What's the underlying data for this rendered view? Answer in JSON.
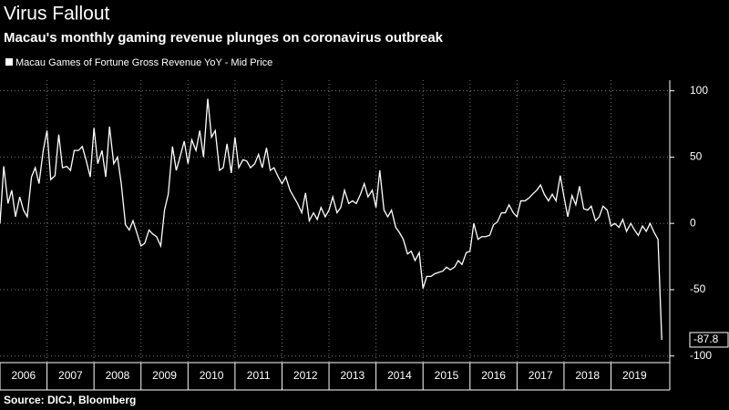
{
  "chart_data": {
    "type": "line",
    "title": "Virus Fallout",
    "subtitle": "Macau's monthly gaming revenue plunges on coronavirus outbreak",
    "source": "Source: DICJ, Bloomberg",
    "x": [
      2006,
      2006.08,
      2006.17,
      2006.25,
      2006.33,
      2006.42,
      2006.5,
      2006.58,
      2006.67,
      2006.75,
      2006.83,
      2006.92,
      2007,
      2007.08,
      2007.17,
      2007.25,
      2007.33,
      2007.42,
      2007.5,
      2007.58,
      2007.67,
      2007.75,
      2007.83,
      2007.92,
      2008,
      2008.08,
      2008.17,
      2008.25,
      2008.33,
      2008.42,
      2008.5,
      2008.58,
      2008.67,
      2008.75,
      2008.83,
      2008.92,
      2009,
      2009.08,
      2009.17,
      2009.25,
      2009.33,
      2009.42,
      2009.5,
      2009.58,
      2009.67,
      2009.75,
      2009.83,
      2009.92,
      2010,
      2010.08,
      2010.17,
      2010.25,
      2010.33,
      2010.42,
      2010.5,
      2010.58,
      2010.67,
      2010.75,
      2010.83,
      2010.92,
      2011,
      2011.08,
      2011.17,
      2011.25,
      2011.33,
      2011.42,
      2011.5,
      2011.58,
      2011.67,
      2011.75,
      2011.83,
      2011.92,
      2012,
      2012.08,
      2012.17,
      2012.25,
      2012.33,
      2012.42,
      2012.5,
      2012.58,
      2012.67,
      2012.75,
      2012.83,
      2012.92,
      2013,
      2013.08,
      2013.17,
      2013.25,
      2013.33,
      2013.42,
      2013.5,
      2013.58,
      2013.67,
      2013.75,
      2013.83,
      2013.92,
      2014,
      2014.08,
      2014.17,
      2014.25,
      2014.33,
      2014.42,
      2014.5,
      2014.58,
      2014.67,
      2014.75,
      2014.83,
      2014.92,
      2015,
      2015.08,
      2015.17,
      2015.25,
      2015.33,
      2015.42,
      2015.5,
      2015.58,
      2015.67,
      2015.75,
      2015.83,
      2015.92,
      2016,
      2016.08,
      2016.17,
      2016.25,
      2016.33,
      2016.42,
      2016.5,
      2016.58,
      2016.67,
      2016.75,
      2016.83,
      2016.92,
      2017,
      2017.08,
      2017.17,
      2017.25,
      2017.33,
      2017.42,
      2017.5,
      2017.58,
      2017.67,
      2017.75,
      2017.83,
      2017.92,
      2018,
      2018.08,
      2018.17,
      2018.25,
      2018.33,
      2018.42,
      2018.5,
      2018.58,
      2018.67,
      2018.75,
      2018.83,
      2018.92,
      2019,
      2019.08,
      2019.17,
      2019.25,
      2019.33,
      2019.42,
      2019.5,
      2019.58,
      2019.67,
      2019.75,
      2019.83,
      2019.92,
      2020,
      2020.08
    ],
    "series": [
      {
        "name": "Macau Games of Fortune Gross Revenue YoY - Mid Price",
        "color": "#ffffff",
        "values": [
          0,
          43,
          15,
          25,
          5,
          20,
          10,
          5,
          35,
          42,
          30,
          55,
          70,
          33,
          36,
          67,
          42,
          43,
          40,
          55,
          55,
          58,
          48,
          35,
          72,
          45,
          55,
          35,
          73,
          45,
          50,
          30,
          -1,
          -5,
          2,
          -8,
          -17,
          -15,
          -5,
          -8,
          -10,
          -17,
          10,
          22,
          58,
          40,
          50,
          62,
          45,
          63,
          55,
          70,
          50,
          94,
          65,
          70,
          40,
          42,
          60,
          38,
          65,
          42,
          48,
          47,
          42,
          45,
          52,
          42,
          57,
          40,
          42,
          35,
          30,
          35,
          25,
          20,
          15,
          8,
          23,
          2,
          8,
          3,
          12,
          5,
          10,
          20,
          8,
          12,
          25,
          15,
          17,
          15,
          22,
          30,
          20,
          25,
          12,
          40,
          10,
          5,
          10,
          -3,
          -7,
          -12,
          -23,
          -21,
          -28,
          -22,
          -49,
          -40,
          -40,
          -38,
          -37,
          -36,
          -33,
          -35,
          -33,
          -28,
          -31,
          -22,
          -21,
          0,
          -12,
          -10,
          -10,
          -9,
          -1,
          1,
          8,
          8,
          14,
          8,
          5,
          17,
          17,
          19,
          22,
          25,
          29,
          22,
          17,
          22,
          17,
          36,
          20,
          5,
          21,
          14,
          28,
          11,
          10,
          13,
          2,
          5,
          13,
          10,
          -2,
          0,
          -3,
          3,
          -6,
          0,
          -5,
          -9,
          -2,
          -6,
          0,
          -7,
          -12,
          -87.8
        ]
      }
    ],
    "xlim": [
      2006,
      2020.25
    ],
    "xticks": [
      2006,
      2007,
      2008,
      2009,
      2010,
      2011,
      2012,
      2013,
      2014,
      2015,
      2016,
      2017,
      2018,
      2019
    ],
    "ylim": [
      -105,
      108
    ],
    "yticks": [
      -100,
      -50,
      0,
      50,
      100
    ],
    "grid": true
  }
}
